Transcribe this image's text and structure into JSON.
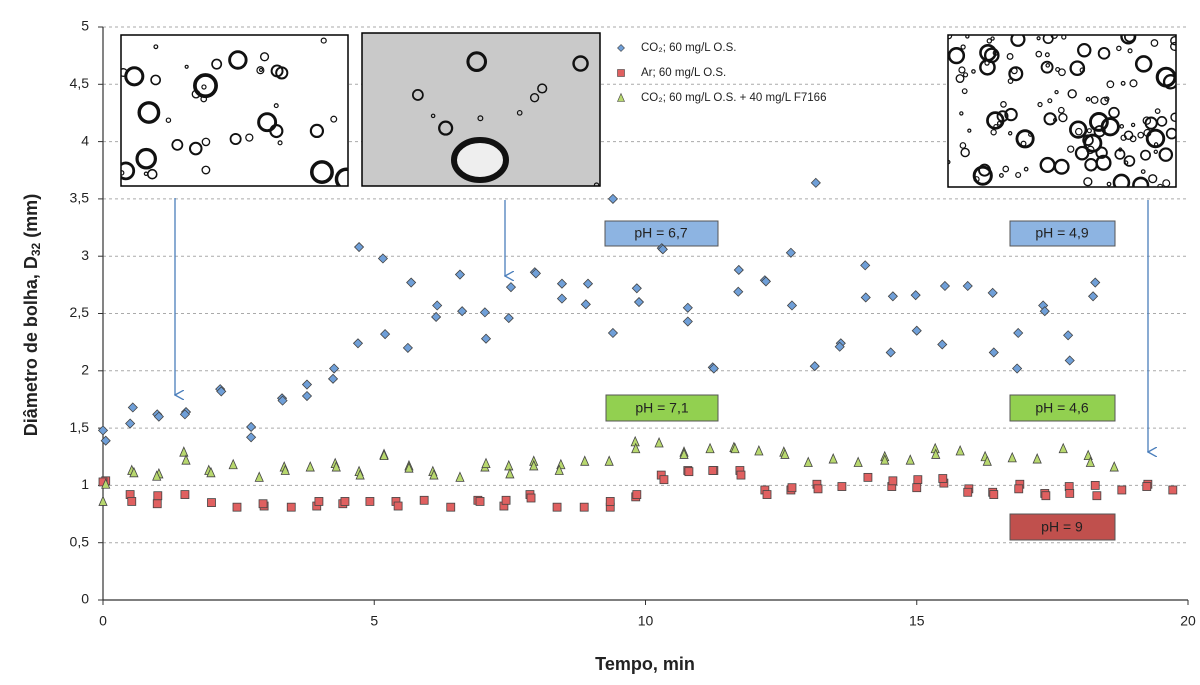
{
  "chart_data": {
    "type": "scatter",
    "x_label": "Tempo, min",
    "y_label_parts": [
      "Diâmetro de bolha, D",
      "32",
      " (mm)"
    ],
    "xlim": [
      0,
      20
    ],
    "xticks": [
      0,
      5,
      10,
      15,
      20
    ],
    "ylim": [
      0,
      5
    ],
    "yticks": [
      0,
      {
        "value": 0.5,
        "label": "0,5"
      },
      1,
      {
        "value": 1.5,
        "label": "1,5"
      },
      2,
      {
        "value": 2.5,
        "label": "2,5"
      },
      3,
      {
        "value": 3.5,
        "label": "3,5"
      },
      4,
      {
        "value": 4.5,
        "label": "4,5"
      },
      5
    ],
    "grid": true,
    "series": [
      {
        "name": "CO₂; 60 mg/L O.S.",
        "color": "#6f9fd8",
        "marker": "diamond",
        "x": [
          0,
          0.05,
          0.55,
          0.5,
          1.0,
          1.03,
          1.53,
          1.51,
          2.16,
          2.18,
          2.73,
          2.73,
          3.3,
          3.31,
          3.76,
          3.76,
          4.26,
          4.24,
          4.72,
          4.7,
          5.16,
          5.2,
          5.68,
          5.62,
          6.16,
          6.14,
          6.58,
          6.62,
          7.04,
          7.06,
          7.52,
          7.48,
          7.96,
          7.98,
          8.46,
          8.46,
          8.94,
          8.9,
          9.4,
          9.4,
          9.84,
          9.88,
          10.3,
          10.32,
          10.78,
          10.78,
          11.24,
          11.26,
          11.72,
          11.71,
          12.2,
          12.22,
          12.68,
          12.7,
          13.14,
          13.12,
          13.6,
          13.58,
          14.05,
          14.06,
          14.56,
          14.52,
          14.98,
          15.0,
          15.52,
          15.47,
          15.94,
          16.4,
          16.42,
          16.87,
          16.85,
          17.33,
          17.36,
          17.79,
          17.82,
          18.29,
          18.25
        ],
        "values": [
          1.48,
          1.39,
          1.68,
          1.54,
          1.62,
          1.6,
          1.64,
          1.62,
          1.84,
          1.82,
          1.51,
          1.42,
          1.76,
          1.74,
          1.88,
          1.78,
          2.02,
          1.93,
          3.08,
          2.24,
          2.98,
          2.32,
          2.77,
          2.2,
          2.57,
          2.47,
          2.84,
          2.52,
          2.51,
          2.28,
          2.73,
          2.46,
          2.86,
          2.85,
          2.76,
          2.63,
          2.76,
          2.58,
          3.5,
          2.33,
          2.72,
          2.6,
          3.07,
          3.06,
          2.55,
          2.43,
          2.03,
          2.02,
          2.88,
          2.69,
          2.79,
          2.78,
          3.03,
          2.57,
          3.64,
          2.04,
          2.24,
          2.21,
          2.92,
          2.64,
          2.65,
          2.16,
          2.66,
          2.35,
          2.74,
          2.23,
          2.74,
          2.68,
          2.16,
          2.33,
          2.02,
          2.57,
          2.52,
          2.31,
          2.09,
          2.77,
          2.65
        ]
      },
      {
        "name": "Ar; 60 mg/L O.S.",
        "color": "#e06060",
        "marker": "square",
        "x": [
          0.05,
          0,
          0.5,
          0.53,
          1.0,
          1.01,
          1.51,
          2.0,
          2.47,
          2.97,
          2.95,
          3.47,
          3.94,
          3.98,
          4.42,
          4.46,
          4.92,
          5.4,
          5.44,
          5.92,
          6.41,
          6.91,
          6.95,
          7.39,
          7.43,
          7.87,
          7.89,
          8.37,
          8.87,
          9.35,
          9.35,
          9.82,
          9.84,
          10.29,
          10.34,
          10.78,
          10.8,
          11.26,
          11.24,
          11.74,
          11.76,
          12.2,
          12.24,
          12.68,
          12.7,
          13.16,
          13.18,
          13.62,
          14.1,
          14.54,
          14.56,
          15.02,
          15.0,
          15.5,
          15.48,
          15.96,
          15.94,
          16.4,
          16.42,
          16.9,
          16.88,
          17.36,
          17.38,
          17.81,
          17.82,
          18.29,
          18.32,
          18.78,
          19.26,
          19.24,
          19.72
        ],
        "values": [
          1.04,
          1.03,
          0.92,
          0.86,
          0.84,
          0.91,
          0.92,
          0.85,
          0.81,
          0.82,
          0.84,
          0.81,
          0.82,
          0.86,
          0.84,
          0.86,
          0.86,
          0.86,
          0.82,
          0.87,
          0.81,
          0.87,
          0.86,
          0.82,
          0.87,
          0.92,
          0.89,
          0.81,
          0.81,
          0.81,
          0.86,
          0.9,
          0.92,
          1.09,
          1.05,
          1.13,
          1.12,
          1.13,
          1.13,
          1.13,
          1.09,
          0.96,
          0.92,
          0.96,
          0.98,
          1.01,
          0.97,
          0.99,
          1.07,
          0.99,
          1.04,
          1.05,
          0.98,
          1.02,
          1.06,
          0.97,
          0.94,
          0.94,
          0.92,
          1.01,
          0.97,
          0.93,
          0.91,
          0.99,
          0.93,
          1.0,
          0.91,
          0.96,
          1.01,
          0.99,
          0.96
        ]
      },
      {
        "name": "CO₂; 60 mg/L O.S. + 40 mg/L F7166",
        "color": "#b8d86e",
        "marker": "triangle",
        "x": [
          0,
          0.05,
          0.53,
          0.57,
          1.03,
          0.99,
          1.49,
          1.53,
          1.95,
          1.99,
          2.4,
          2.88,
          3.34,
          3.36,
          3.82,
          4.28,
          4.3,
          4.72,
          4.74,
          5.18,
          5.18,
          5.64,
          5.64,
          6.08,
          6.1,
          6.58,
          7.04,
          7.06,
          7.48,
          7.5,
          7.94,
          7.94,
          8.44,
          8.41,
          8.88,
          9.33,
          9.81,
          9.82,
          10.25,
          10.71,
          10.71,
          11.19,
          11.63,
          11.65,
          12.09,
          12.55,
          12.57,
          13.0,
          13.46,
          13.92,
          14.41,
          14.41,
          14.88,
          15.34,
          15.35,
          15.8,
          16.26,
          16.3,
          16.76,
          17.22,
          17.7,
          18.16,
          18.2,
          18.64
        ],
        "values": [
          0.86,
          1.01,
          1.13,
          1.11,
          1.1,
          1.08,
          1.29,
          1.22,
          1.13,
          1.11,
          1.18,
          1.07,
          1.16,
          1.13,
          1.16,
          1.19,
          1.16,
          1.12,
          1.09,
          1.27,
          1.26,
          1.17,
          1.15,
          1.12,
          1.09,
          1.07,
          1.16,
          1.19,
          1.17,
          1.1,
          1.21,
          1.17,
          1.18,
          1.13,
          1.21,
          1.21,
          1.38,
          1.32,
          1.37,
          1.29,
          1.27,
          1.32,
          1.33,
          1.32,
          1.3,
          1.29,
          1.27,
          1.2,
          1.23,
          1.2,
          1.25,
          1.22,
          1.22,
          1.32,
          1.27,
          1.3,
          1.25,
          1.21,
          1.24,
          1.23,
          1.32,
          1.26,
          1.2,
          1.16
        ]
      }
    ],
    "annotations": [
      "pH = 6,7",
      "pH = 4,9",
      "pH = 7,1",
      "pH = 4,6",
      "pH = 9"
    ]
  }
}
